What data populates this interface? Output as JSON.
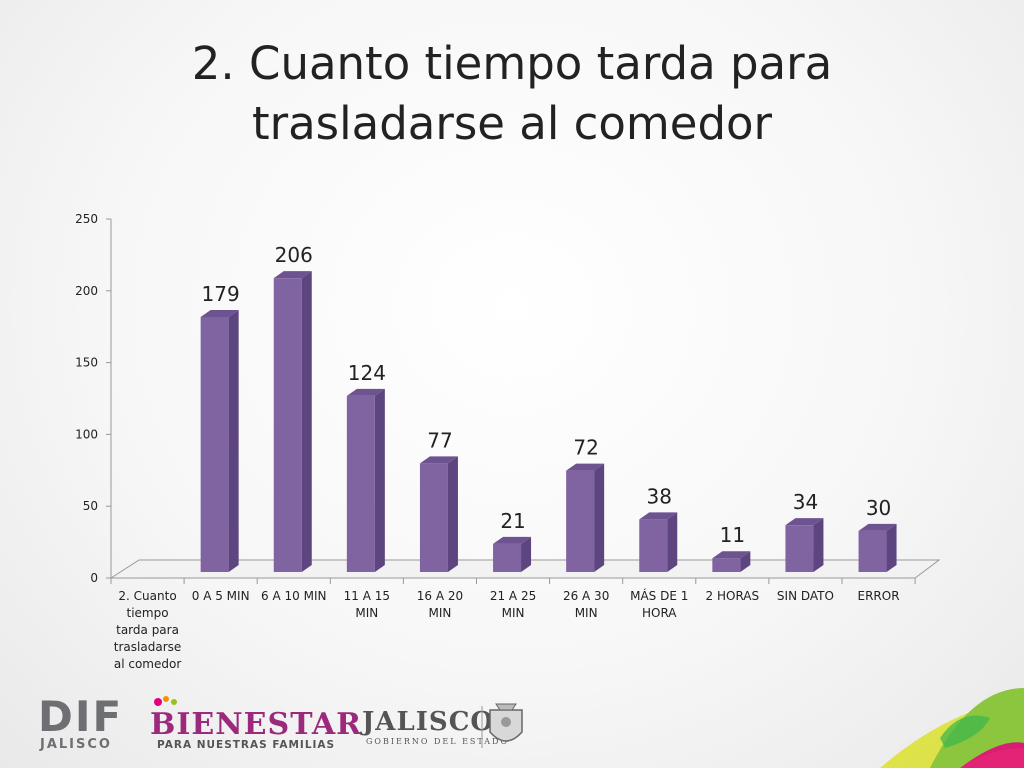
{
  "slide": {
    "title_lines": [
      "2. Cuanto tiempo tarda para",
      "trasladarse al comedor"
    ]
  },
  "chart_data": {
    "type": "bar",
    "categories": [
      [
        "2. Cuanto",
        "tiempo",
        "tarda para",
        "trasladarse",
        "al comedor"
      ],
      [
        "0 A 5 MIN"
      ],
      [
        "6 A 10 MIN"
      ],
      [
        "11 A 15",
        "MIN"
      ],
      [
        "16 A 20",
        "MIN"
      ],
      [
        "21 A 25",
        "MIN"
      ],
      [
        "26 A 30",
        "MIN"
      ],
      [
        "MÁS DE 1",
        "HORA"
      ],
      [
        "2 HORAS"
      ],
      [
        "SIN DATO"
      ],
      [
        "ERROR"
      ]
    ],
    "values": [
      null,
      179,
      206,
      124,
      77,
      21,
      72,
      38,
      11,
      34,
      30
    ],
    "ylim": [
      0,
      250
    ],
    "yticks": [
      0,
      50,
      100,
      150,
      200,
      250
    ],
    "grid": false,
    "legend": "none",
    "colors": {
      "bar_front": "#8064a2",
      "bar_side": "#5d4580",
      "bar_top": "#6e5391",
      "axis": "#999999"
    }
  },
  "logos": {
    "dif": {
      "name": "DIF",
      "sub": "JALISCO"
    },
    "bienestar": {
      "name": "BIENESTAR",
      "sub": "PARA NUESTRAS FAMILIAS"
    },
    "jalisco": {
      "name": "JALISCO",
      "sub": "GOBIERNO DEL ESTADO"
    }
  }
}
